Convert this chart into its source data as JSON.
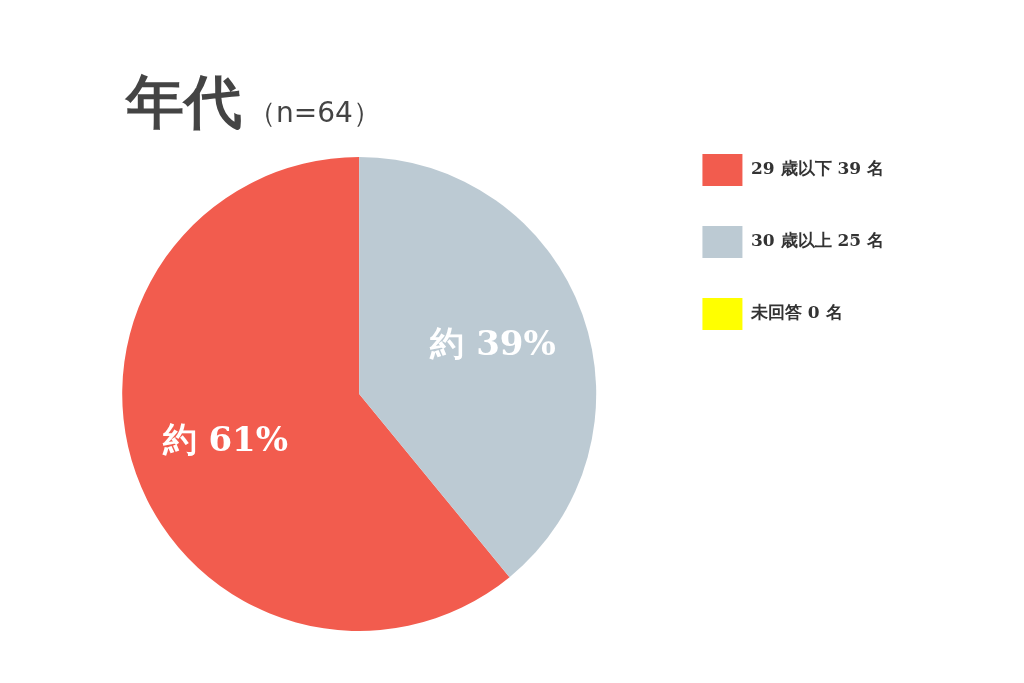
{
  "chart_data": {
    "type": "pie",
    "title": "年代",
    "subtitle": "（n=64）",
    "categories": [
      "29 歳以下 39 名",
      "30 歳以上 25 名",
      "未回答 0 名"
    ],
    "values": [
      39,
      25,
      0
    ],
    "colors": [
      "#f25c4e",
      "#bccad3",
      "#ffff00"
    ],
    "value_labels": [
      "約 61%",
      "約 39%",
      null
    ],
    "legend": "right"
  }
}
